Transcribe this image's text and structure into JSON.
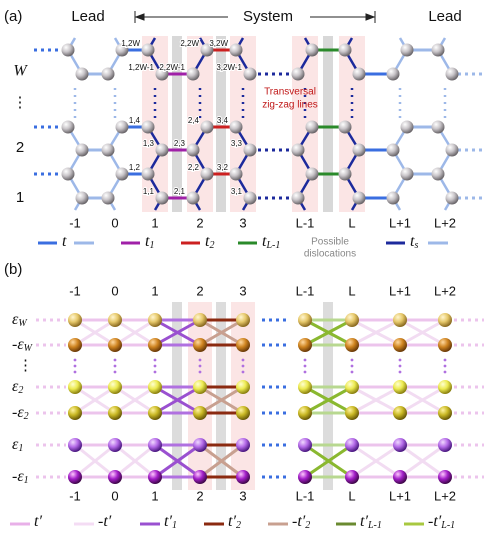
{
  "panel_a": {
    "label": "(a)",
    "lead_left": "Lead",
    "system": "System",
    "lead_right": "Lead",
    "row_labels": [
      "W",
      "⋮",
      "2",
      "1"
    ],
    "site_labels": [
      [
        "1,2W",
        "2,2W",
        "3,2W"
      ],
      [
        "1,2W-1",
        "2,2W-1",
        "3,2W-1"
      ],
      [
        "1,4",
        "2,4",
        "3,4"
      ],
      [
        "1,3",
        "2,3",
        "3,3"
      ],
      [
        "1,2",
        "2,2",
        "3,2"
      ],
      [
        "1,1",
        "2,1",
        "3,1"
      ]
    ],
    "annotation": [
      "Transversal",
      "zig-zag lines"
    ],
    "column_labels": [
      "-1",
      "0",
      "1",
      "2",
      "3",
      "L-1",
      "L",
      "L+1",
      "L+2"
    ],
    "legend": [
      {
        "text": "t"
      },
      {
        "text": "t",
        "sub": "1"
      },
      {
        "text": "t",
        "sub": "2"
      },
      {
        "text": "t",
        "sub": "L-1"
      },
      {
        "text": "t",
        "sub": "s"
      }
    ],
    "dislocations": [
      "Possible",
      "dislocations"
    ]
  },
  "panel_b": {
    "label": "(b)",
    "column_labels": [
      "-1",
      "0",
      "1",
      "2",
      "3",
      "L-1",
      "L",
      "L+1",
      "L+2"
    ],
    "row_labels": [
      {
        "text": "ε",
        "sub": "W"
      },
      {
        "text": "-ε",
        "sub": "W"
      },
      {
        "text": "⋮"
      },
      {
        "text": "ε",
        "sub": "2"
      },
      {
        "text": "-ε",
        "sub": "2"
      },
      {
        "text": "ε",
        "sub": "1"
      },
      {
        "text": "-ε",
        "sub": "1"
      }
    ],
    "legend": [
      {
        "text": "t′"
      },
      {
        "text": "-t′"
      },
      {
        "text": "t′",
        "sub": "1"
      },
      {
        "text": "t′",
        "sub": "2"
      },
      {
        "text": "-t′",
        "sub": "2"
      },
      {
        "text": "t′",
        "sub": "L-1"
      },
      {
        "text": "-t′",
        "sub": "L-1"
      }
    ]
  }
}
